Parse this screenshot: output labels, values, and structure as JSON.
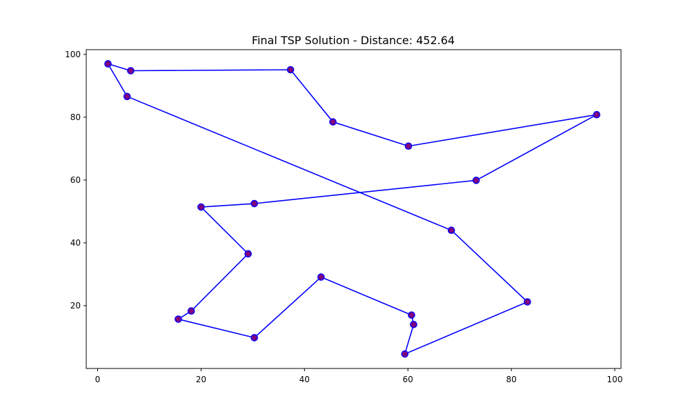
{
  "chart_data": {
    "type": "line",
    "title": "Final TSP Solution - Distance: 452.64",
    "xlabel": "",
    "ylabel": "",
    "xlim": [
      -2.2,
      101.2
    ],
    "ylim": [
      0.0,
      101.5
    ],
    "xticks": [
      0,
      20,
      40,
      60,
      80,
      100
    ],
    "yticks": [
      20,
      40,
      60,
      80,
      100
    ],
    "grid": false,
    "line_color": "#0000ff",
    "marker_edge_color": "#0000ff",
    "marker_fill_color": "#800080",
    "series": [
      {
        "x": [
          2.0,
          6.4,
          37.3,
          45.5,
          60.1,
          96.5,
          73.2,
          30.3,
          20.0,
          29.1,
          18.1,
          15.6,
          30.3,
          43.2,
          60.7,
          61.1,
          59.4,
          83.1,
          68.4,
          5.7,
          2.0
        ],
        "y": [
          97.0,
          94.8,
          95.1,
          78.5,
          70.8,
          80.8,
          59.9,
          52.5,
          51.4,
          36.5,
          18.3,
          15.7,
          9.8,
          29.1,
          17.0,
          14.0,
          4.6,
          21.2,
          44.0,
          86.6,
          97.0
        ]
      }
    ]
  }
}
